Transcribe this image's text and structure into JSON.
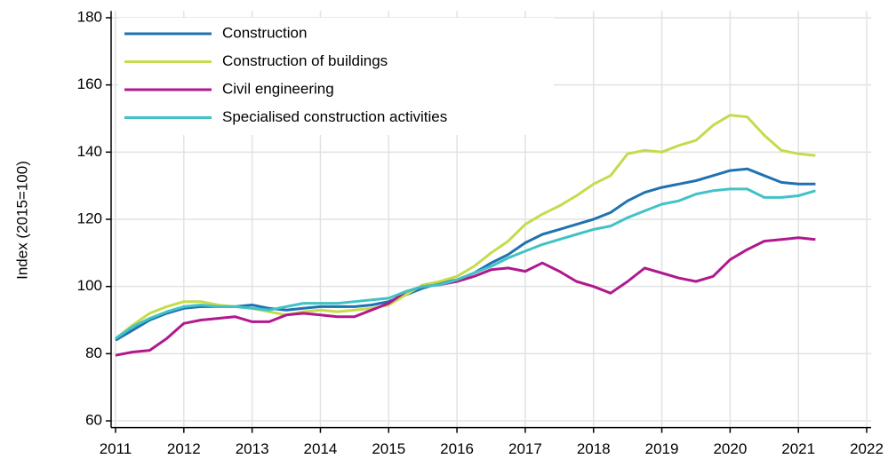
{
  "chart_data": {
    "type": "line",
    "y_label": "Index (2015=100)",
    "x": [
      2011,
      2011.25,
      2011.5,
      2011.75,
      2012,
      2012.25,
      2012.5,
      2012.75,
      2013,
      2013.25,
      2013.5,
      2013.75,
      2014,
      2014.25,
      2014.5,
      2014.75,
      2015,
      2015.25,
      2015.5,
      2015.75,
      2016,
      2016.25,
      2016.5,
      2016.75,
      2017,
      2017.25,
      2017.5,
      2017.75,
      2018,
      2018.25,
      2018.5,
      2018.75,
      2019,
      2019.25,
      2019.5,
      2019.75,
      2020,
      2020.25,
      2020.5,
      2020.75,
      2021,
      2021.25
    ],
    "series": [
      {
        "name": "Construction",
        "color": "#1f72b0",
        "values": [
          84,
          87,
          90,
          92,
          93.5,
          94,
          94,
          94,
          94.5,
          93.5,
          93,
          93.5,
          94,
          94,
          94,
          94.5,
          95.5,
          97.5,
          99.5,
          101,
          102,
          104,
          107,
          109.5,
          113,
          115.5,
          117,
          118.5,
          120,
          122,
          125.5,
          128,
          129.5,
          130.5,
          131.5,
          133,
          134.5,
          135,
          133,
          131,
          130.5,
          130.5
        ]
      },
      {
        "name": "Construction of buildings",
        "color": "#c5db4c",
        "values": [
          84.5,
          88.5,
          92,
          94,
          95.5,
          95.5,
          94.5,
          94,
          93.5,
          92.5,
          91.5,
          92.5,
          93,
          92.5,
          93,
          93.5,
          94.5,
          97.5,
          100.5,
          101.5,
          103,
          106,
          110,
          113.5,
          118.5,
          121.5,
          124,
          127,
          130.5,
          133,
          139.5,
          140.5,
          140,
          142,
          143.5,
          148,
          151,
          150.5,
          145,
          140.5,
          139.5,
          139
        ]
      },
      {
        "name": "Civil engineering",
        "color": "#b0198e",
        "values": [
          79.5,
          80.5,
          81,
          84.5,
          89,
          90,
          90.5,
          91,
          89.5,
          89.5,
          91.5,
          92,
          91.5,
          91,
          91,
          93,
          95,
          98.5,
          100,
          100.5,
          101.5,
          103,
          105,
          105.5,
          104.5,
          107,
          104.5,
          101.5,
          100,
          98,
          101.5,
          105.5,
          104,
          102.5,
          101.5,
          103,
          108,
          111,
          113.5,
          114,
          114.5,
          114
        ]
      },
      {
        "name": "Specialised construction activities",
        "color": "#41c2c6",
        "values": [
          84.5,
          88,
          90.5,
          92.5,
          94,
          94.5,
          94,
          94,
          93.5,
          93,
          94,
          95,
          95,
          95,
          95.5,
          96,
          96.5,
          98.5,
          100,
          100.5,
          102,
          104,
          106,
          108.5,
          110.5,
          112.5,
          114,
          115.5,
          117,
          118,
          120.5,
          122.5,
          124.5,
          125.5,
          127.5,
          128.5,
          129,
          129,
          126.5,
          126.5,
          127,
          128.5
        ]
      }
    ],
    "xlim": [
      2010.935,
      2022.065
    ],
    "xticks": [
      2011,
      2012,
      2013,
      2014,
      2015,
      2016,
      2017,
      2018,
      2019,
      2020,
      2021,
      2022
    ],
    "ylim": [
      58,
      182
    ],
    "yticks": [
      60,
      80,
      100,
      120,
      140,
      160,
      180
    ],
    "grid": true,
    "legend": "upper-left"
  }
}
